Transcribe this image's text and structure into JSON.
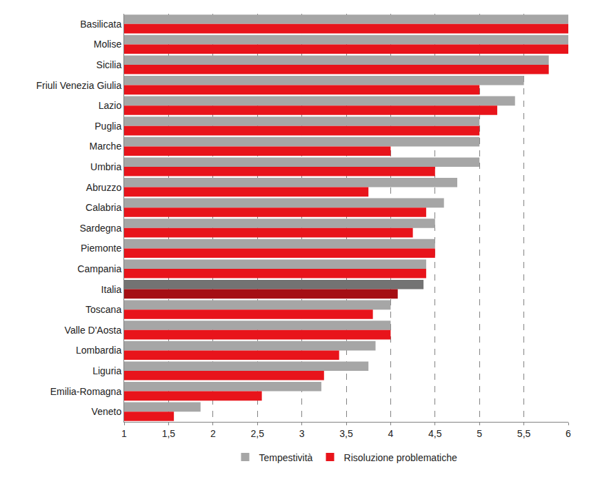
{
  "chart_data": {
    "type": "bar",
    "orientation": "horizontal",
    "grid": true,
    "legend": "bottom",
    "categories": [
      "Basilicata",
      "Molise",
      "Sicilia",
      "Friuli Venezia Giulia",
      "Lazio",
      "Puglia",
      "Marche",
      "Umbria",
      "Abruzzo",
      "Calabria",
      "Sardegna",
      "Piemonte",
      "Campania",
      "Italia",
      "Toscana",
      "Valle D'Aosta",
      "Lombardia",
      "Liguria",
      "Emilia-Romagna",
      "Veneto"
    ],
    "series": [
      {
        "name": "Tempestività",
        "colors": [
          "#a6a6a6",
          "#a6a6a6",
          "#a6a6a6",
          "#a6a6a6",
          "#a6a6a6",
          "#a6a6a6",
          "#a6a6a6",
          "#a6a6a6",
          "#a6a6a6",
          "#a6a6a6",
          "#a6a6a6",
          "#a6a6a6",
          "#a6a6a6",
          "#737373",
          "#a6a6a6",
          "#a6a6a6",
          "#a6a6a6",
          "#a6a6a6",
          "#a6a6a6",
          "#a6a6a6"
        ],
        "values": [
          6,
          6,
          5.78,
          5.5,
          5.4,
          5.0,
          5.0,
          5.0,
          4.75,
          4.6,
          4.5,
          4.5,
          4.4,
          4.37,
          4.0,
          4.0,
          3.83,
          3.75,
          3.22,
          1.86
        ]
      },
      {
        "name": "Risoluzione problematiche",
        "colors": [
          "#e8141b",
          "#e8141b",
          "#e8141b",
          "#e8141b",
          "#e8141b",
          "#e8141b",
          "#e8141b",
          "#e8141b",
          "#e8141b",
          "#e8141b",
          "#e8141b",
          "#e8141b",
          "#e8141b",
          "#a50f14",
          "#e8141b",
          "#e8141b",
          "#e8141b",
          "#e8141b",
          "#e8141b",
          "#e8141b"
        ],
        "values": [
          6,
          6,
          5.78,
          5.0,
          5.2,
          5.0,
          4.0,
          4.5,
          3.75,
          4.4,
          4.25,
          4.5,
          4.4,
          4.08,
          3.8,
          4.0,
          3.42,
          3.25,
          2.55,
          1.56
        ]
      }
    ],
    "xlim": [
      1,
      6
    ],
    "xticks": [
      1,
      {
        "value": 1.5,
        "label": "1,5"
      },
      2,
      {
        "value": 2.5,
        "label": "2,5"
      },
      3,
      {
        "value": 3.5,
        "label": "3,5"
      },
      4,
      {
        "value": 4.5,
        "label": "4,5"
      },
      5,
      {
        "value": 5.5,
        "label": "5,5"
      },
      6
    ]
  }
}
